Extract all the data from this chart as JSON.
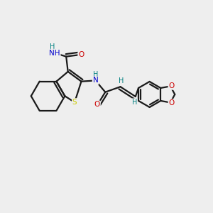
{
  "background_color": "#eeeeee",
  "bond_color": "#1a1a1a",
  "atom_colors": {
    "S": "#cccc00",
    "N": "#0000cc",
    "O": "#cc0000",
    "H": "#008080",
    "C": "#1a1a1a"
  },
  "figsize": [
    3.0,
    3.0
  ],
  "dpi": 100
}
